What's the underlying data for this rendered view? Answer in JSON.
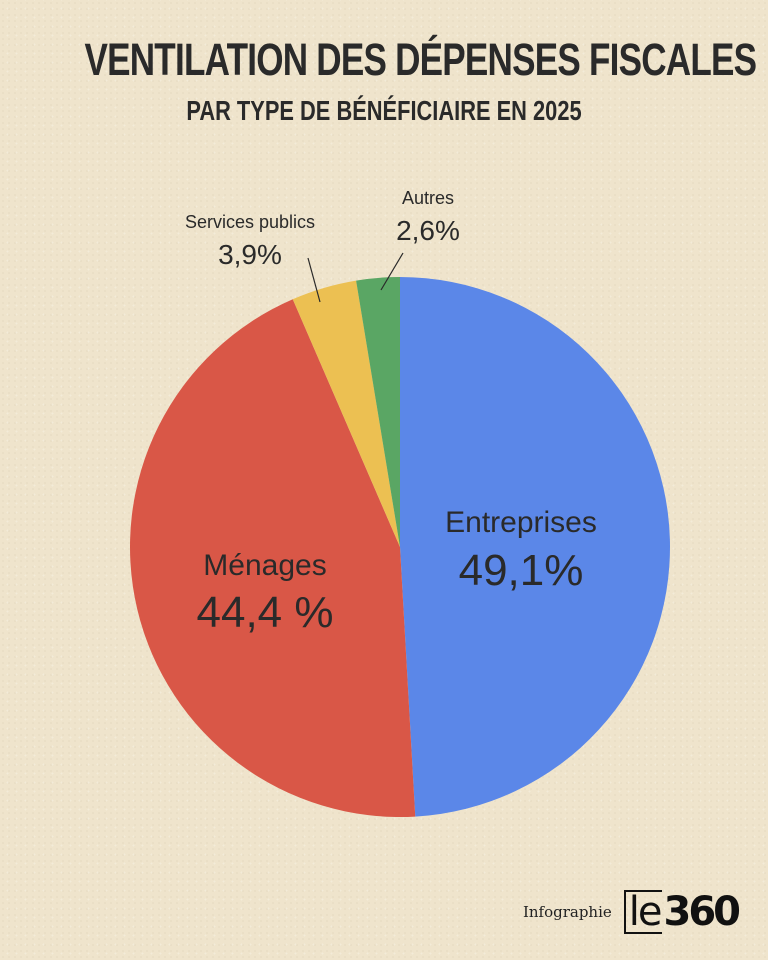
{
  "header": {
    "title": "VENTILATION DES DÉPENSES FISCALES",
    "subtitle": "PAR TYPE DE BÉNÉFICIAIRE EN 2025"
  },
  "chart_data": {
    "type": "pie",
    "title": "VENTILATION DES DÉPENSES FISCALES",
    "subtitle": "PAR TYPE DE BÉNÉFICIAIRE EN 2025",
    "slices": [
      {
        "label": "Entreprises",
        "value": 49.1,
        "display": "49,1%",
        "color": "#5b87e8"
      },
      {
        "label": "Ménages",
        "value": 44.4,
        "display": "44,4 %",
        "color": "#d95747"
      },
      {
        "label": "Services publics",
        "value": 3.9,
        "display": "3,9%",
        "color": "#ecc052"
      },
      {
        "label": "Autres",
        "value": 2.6,
        "display": "2,6%",
        "color": "#5aa664"
      }
    ]
  },
  "footer": {
    "label": "Infographie",
    "logo_prefix": "le",
    "logo_number": "360"
  }
}
